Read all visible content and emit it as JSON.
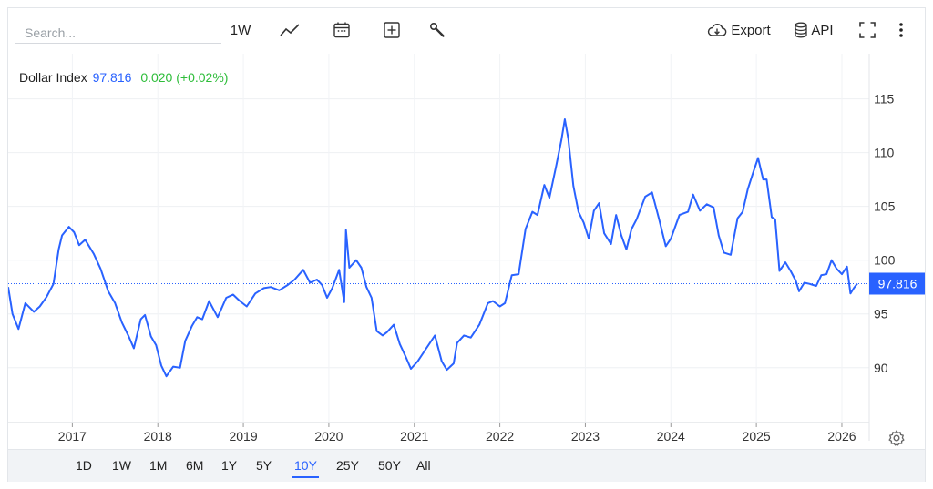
{
  "toolbar": {
    "search_placeholder": "Search...",
    "interval_label": "1W",
    "export_label": "Export",
    "api_label": "API",
    "icons": [
      "line-chart-icon",
      "calendar-icon",
      "add-indicator-icon",
      "wrench-icon",
      "cloud-download-icon",
      "database-icon",
      "fullscreen-icon",
      "more-vertical-icon"
    ]
  },
  "legend": {
    "name": "Dollar Index",
    "value": "97.816",
    "change": "0.020 (+0.02%)",
    "change_color": "#2ebd3a"
  },
  "ranges": [
    "1D",
    "1W",
    "1M",
    "6M",
    "1Y",
    "5Y",
    "10Y",
    "25Y",
    "50Y",
    "All"
  ],
  "active_range": "10Y",
  "chart_data": {
    "type": "line",
    "title": "",
    "series": [
      {
        "color": "#2962ff",
        "points": [
          [
            2016.25,
            97.5
          ],
          [
            2016.3,
            95.0
          ],
          [
            2016.37,
            93.6
          ],
          [
            2016.45,
            96.0
          ],
          [
            2016.55,
            95.2
          ],
          [
            2016.62,
            95.7
          ],
          [
            2016.7,
            96.6
          ],
          [
            2016.78,
            97.8
          ],
          [
            2016.84,
            101.0
          ],
          [
            2016.88,
            102.3
          ],
          [
            2016.96,
            103.1
          ],
          [
            2017.02,
            102.6
          ],
          [
            2017.08,
            101.4
          ],
          [
            2017.15,
            101.9
          ],
          [
            2017.25,
            100.6
          ],
          [
            2017.33,
            99.2
          ],
          [
            2017.42,
            97.1
          ],
          [
            2017.5,
            96.0
          ],
          [
            2017.58,
            94.2
          ],
          [
            2017.66,
            92.9
          ],
          [
            2017.72,
            91.8
          ],
          [
            2017.8,
            94.5
          ],
          [
            2017.85,
            94.9
          ],
          [
            2017.92,
            92.9
          ],
          [
            2017.98,
            92.1
          ],
          [
            2018.04,
            90.2
          ],
          [
            2018.1,
            89.2
          ],
          [
            2018.18,
            90.1
          ],
          [
            2018.26,
            90.0
          ],
          [
            2018.32,
            92.5
          ],
          [
            2018.4,
            93.9
          ],
          [
            2018.46,
            94.7
          ],
          [
            2018.52,
            94.5
          ],
          [
            2018.6,
            96.2
          ],
          [
            2018.7,
            94.7
          ],
          [
            2018.8,
            96.5
          ],
          [
            2018.88,
            96.8
          ],
          [
            2018.96,
            96.2
          ],
          [
            2019.04,
            95.7
          ],
          [
            2019.14,
            96.9
          ],
          [
            2019.24,
            97.4
          ],
          [
            2019.32,
            97.5
          ],
          [
            2019.42,
            97.2
          ],
          [
            2019.52,
            97.7
          ],
          [
            2019.6,
            98.2
          ],
          [
            2019.7,
            99.1
          ],
          [
            2019.78,
            97.9
          ],
          [
            2019.86,
            98.2
          ],
          [
            2019.92,
            97.7
          ],
          [
            2019.98,
            96.5
          ],
          [
            2020.04,
            97.4
          ],
          [
            2020.12,
            99.1
          ],
          [
            2020.18,
            96.1
          ],
          [
            2020.2,
            102.8
          ],
          [
            2020.24,
            99.3
          ],
          [
            2020.32,
            100.0
          ],
          [
            2020.38,
            99.3
          ],
          [
            2020.44,
            97.5
          ],
          [
            2020.5,
            96.5
          ],
          [
            2020.56,
            93.4
          ],
          [
            2020.63,
            93.0
          ],
          [
            2020.68,
            93.3
          ],
          [
            2020.76,
            94.0
          ],
          [
            2020.83,
            92.2
          ],
          [
            2020.9,
            91.0
          ],
          [
            2020.96,
            89.9
          ],
          [
            2021.04,
            90.6
          ],
          [
            2021.14,
            91.8
          ],
          [
            2021.24,
            93.0
          ],
          [
            2021.32,
            90.6
          ],
          [
            2021.38,
            89.8
          ],
          [
            2021.46,
            90.4
          ],
          [
            2021.5,
            92.3
          ],
          [
            2021.58,
            93.0
          ],
          [
            2021.66,
            92.8
          ],
          [
            2021.76,
            94.0
          ],
          [
            2021.86,
            96.0
          ],
          [
            2021.92,
            96.2
          ],
          [
            2022.0,
            95.7
          ],
          [
            2022.06,
            96.0
          ],
          [
            2022.14,
            98.6
          ],
          [
            2022.22,
            98.7
          ],
          [
            2022.3,
            102.9
          ],
          [
            2022.38,
            104.5
          ],
          [
            2022.44,
            104.2
          ],
          [
            2022.52,
            107.0
          ],
          [
            2022.58,
            105.8
          ],
          [
            2022.66,
            108.8
          ],
          [
            2022.72,
            111.2
          ],
          [
            2022.76,
            113.1
          ],
          [
            2022.8,
            111.3
          ],
          [
            2022.86,
            106.9
          ],
          [
            2022.92,
            104.5
          ],
          [
            2022.98,
            103.5
          ],
          [
            2023.04,
            102.0
          ],
          [
            2023.1,
            104.6
          ],
          [
            2023.16,
            105.3
          ],
          [
            2023.22,
            102.5
          ],
          [
            2023.3,
            101.5
          ],
          [
            2023.36,
            104.2
          ],
          [
            2023.42,
            102.3
          ],
          [
            2023.48,
            101.0
          ],
          [
            2023.54,
            102.9
          ],
          [
            2023.6,
            103.8
          ],
          [
            2023.7,
            105.9
          ],
          [
            2023.78,
            106.3
          ],
          [
            2023.86,
            103.9
          ],
          [
            2023.94,
            101.3
          ],
          [
            2024.0,
            102.0
          ],
          [
            2024.1,
            104.2
          ],
          [
            2024.2,
            104.5
          ],
          [
            2024.26,
            106.1
          ],
          [
            2024.34,
            104.6
          ],
          [
            2024.42,
            105.2
          ],
          [
            2024.5,
            104.9
          ],
          [
            2024.56,
            102.3
          ],
          [
            2024.62,
            100.7
          ],
          [
            2024.7,
            100.5
          ],
          [
            2024.78,
            103.9
          ],
          [
            2024.84,
            104.5
          ],
          [
            2024.9,
            106.6
          ],
          [
            2024.96,
            108.1
          ],
          [
            2025.02,
            109.5
          ],
          [
            2025.08,
            107.5
          ],
          [
            2025.12,
            107.5
          ],
          [
            2025.18,
            104.0
          ],
          [
            2025.22,
            103.8
          ],
          [
            2025.27,
            99.0
          ],
          [
            2025.34,
            99.8
          ],
          [
            2025.4,
            99.0
          ],
          [
            2025.46,
            98.1
          ],
          [
            2025.5,
            97.1
          ],
          [
            2025.56,
            97.9
          ],
          [
            2025.62,
            97.8
          ],
          [
            2025.7,
            97.6
          ],
          [
            2025.76,
            98.6
          ],
          [
            2025.82,
            98.7
          ],
          [
            2025.88,
            100.0
          ],
          [
            2025.94,
            99.2
          ],
          [
            2026.0,
            98.7
          ],
          [
            2026.06,
            99.4
          ],
          [
            2026.1,
            96.9
          ],
          [
            2026.14,
            97.4
          ],
          [
            2026.18,
            97.816
          ]
        ]
      }
    ],
    "x_ticks": [
      "2017",
      "2018",
      "2019",
      "2020",
      "2021",
      "2022",
      "2023",
      "2024",
      "2025",
      "2026"
    ],
    "y_ticks": [
      "115",
      "110",
      "105",
      "100",
      "95",
      "90"
    ],
    "xlim": [
      2016.25,
      2026.32
    ],
    "ylim": [
      84.9,
      119.2
    ],
    "last_value_label": "97.816",
    "last_value": 97.816,
    "grid": true
  }
}
